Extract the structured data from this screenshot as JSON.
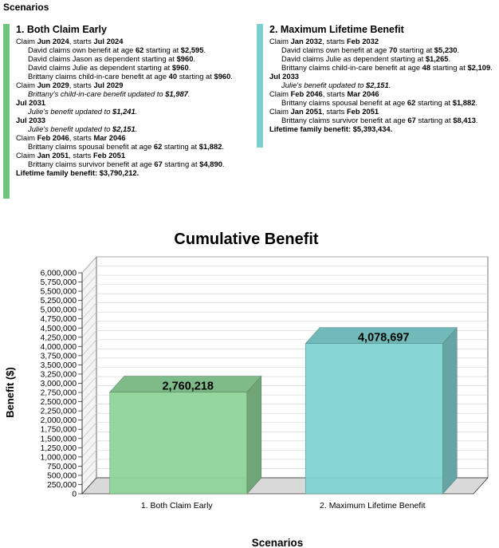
{
  "header": "Scenarios",
  "scenarios": [
    {
      "title": "1.  Both Claim Early",
      "color": "#6dc47a",
      "lines": [
        {
          "style": "plain",
          "parts": [
            [
              "Claim ",
              false
            ],
            [
              "Jun 2024",
              true
            ],
            [
              ", starts ",
              false
            ],
            [
              "Jul 2024",
              true
            ]
          ]
        },
        {
          "style": "ind",
          "parts": [
            [
              "David claims own benefit at age ",
              false
            ],
            [
              "62",
              true
            ],
            [
              " starting at ",
              false
            ],
            [
              "$2,595",
              true
            ],
            [
              ".",
              false
            ]
          ]
        },
        {
          "style": "ind",
          "parts": [
            [
              "David claims Jason as dependent starting at ",
              false
            ],
            [
              "$960",
              true
            ],
            [
              ".",
              false
            ]
          ]
        },
        {
          "style": "ind",
          "parts": [
            [
              "David claims Julie as dependent starting at ",
              false
            ],
            [
              "$960",
              true
            ],
            [
              ".",
              false
            ]
          ]
        },
        {
          "style": "ind",
          "parts": [
            [
              "Brittany claims child-in-care benefit at age ",
              false
            ],
            [
              "40",
              true
            ],
            [
              " starting at ",
              false
            ],
            [
              "$960",
              true
            ],
            [
              ".",
              false
            ]
          ]
        },
        {
          "style": "plain",
          "parts": [
            [
              "Claim ",
              false
            ],
            [
              "Jun 2029",
              true
            ],
            [
              ", starts ",
              false
            ],
            [
              "Jul 2029",
              true
            ]
          ]
        },
        {
          "style": "ind it",
          "parts": [
            [
              "Brittany's child-in-care benefit updated to ",
              false
            ],
            [
              "$1,987",
              true
            ],
            [
              ".",
              false
            ]
          ]
        },
        {
          "style": "b",
          "parts": [
            [
              "Jul 2031",
              true
            ]
          ]
        },
        {
          "style": "ind it",
          "parts": [
            [
              "Julie's benefit updated to ",
              false
            ],
            [
              "$1,241",
              true
            ],
            [
              ".",
              false
            ]
          ]
        },
        {
          "style": "b",
          "parts": [
            [
              "Jul 2033",
              true
            ]
          ]
        },
        {
          "style": "ind it",
          "parts": [
            [
              "Julie's benefit updated to ",
              false
            ],
            [
              "$2,151",
              true
            ],
            [
              ".",
              false
            ]
          ]
        },
        {
          "style": "plain",
          "parts": [
            [
              "Claim ",
              false
            ],
            [
              "Feb 2046",
              true
            ],
            [
              ", starts ",
              false
            ],
            [
              "Mar 2046",
              true
            ]
          ]
        },
        {
          "style": "ind",
          "parts": [
            [
              "Brittany claims spousal benefit at age ",
              false
            ],
            [
              "62",
              true
            ],
            [
              " starting at ",
              false
            ],
            [
              "$1,882",
              true
            ],
            [
              ".",
              false
            ]
          ]
        },
        {
          "style": "plain",
          "parts": [
            [
              "Claim ",
              false
            ],
            [
              "Jan 2051",
              true
            ],
            [
              ", starts ",
              false
            ],
            [
              "Feb 2051",
              true
            ]
          ]
        },
        {
          "style": "ind",
          "parts": [
            [
              "Brittany claims survivor benefit at age ",
              false
            ],
            [
              "67",
              true
            ],
            [
              " starting at ",
              false
            ],
            [
              "$4,890",
              true
            ],
            [
              ".",
              false
            ]
          ]
        },
        {
          "style": "b",
          "parts": [
            [
              "Lifetime family benefit: $3,790,212.",
              true
            ]
          ]
        }
      ]
    },
    {
      "title": "2.  Maximum Lifetime Benefit",
      "color": "#7ccfcf",
      "lines": [
        {
          "style": "plain",
          "parts": [
            [
              "Claim ",
              false
            ],
            [
              "Jan 2032",
              true
            ],
            [
              ", starts ",
              false
            ],
            [
              "Feb 2032",
              true
            ]
          ]
        },
        {
          "style": "ind",
          "parts": [
            [
              "David claims own benefit at age ",
              false
            ],
            [
              "70",
              true
            ],
            [
              " starting at ",
              false
            ],
            [
              "$5,230",
              true
            ],
            [
              ".",
              false
            ]
          ]
        },
        {
          "style": "ind",
          "parts": [
            [
              "David claims Julie as dependent starting at ",
              false
            ],
            [
              "$1,265",
              true
            ],
            [
              ".",
              false
            ]
          ]
        },
        {
          "style": "ind",
          "parts": [
            [
              "Brittany claims child-in-care benefit at age ",
              false
            ],
            [
              "48",
              true
            ],
            [
              " starting at ",
              false
            ],
            [
              "$2,109",
              true
            ],
            [
              ".",
              false
            ]
          ]
        },
        {
          "style": "b",
          "parts": [
            [
              "Jul 2033",
              true
            ]
          ]
        },
        {
          "style": "ind it",
          "parts": [
            [
              "Julie's benefit updated to ",
              false
            ],
            [
              "$2,151",
              true
            ],
            [
              ".",
              false
            ]
          ]
        },
        {
          "style": "plain",
          "parts": [
            [
              "Claim ",
              false
            ],
            [
              "Feb 2046",
              true
            ],
            [
              ", starts ",
              false
            ],
            [
              "Mar 2046",
              true
            ]
          ]
        },
        {
          "style": "ind",
          "parts": [
            [
              "Brittany claims spousal benefit at age ",
              false
            ],
            [
              "62",
              true
            ],
            [
              " starting at ",
              false
            ],
            [
              "$1,882",
              true
            ],
            [
              ".",
              false
            ]
          ]
        },
        {
          "style": "plain",
          "parts": [
            [
              "Claim ",
              false
            ],
            [
              "Jan 2051",
              true
            ],
            [
              ", starts ",
              false
            ],
            [
              "Feb 2051",
              true
            ]
          ]
        },
        {
          "style": "ind",
          "parts": [
            [
              "Brittany claims survivor benefit at age ",
              false
            ],
            [
              "67",
              true
            ],
            [
              " starting at ",
              false
            ],
            [
              "$8,413",
              true
            ],
            [
              ".",
              false
            ]
          ]
        },
        {
          "style": "b",
          "parts": [
            [
              "Lifetime family benefit: $5,393,434.",
              true
            ]
          ]
        }
      ]
    }
  ],
  "chart_data": {
    "type": "bar",
    "title": "Cumulative Benefit",
    "xlabel": "Scenarios",
    "ylabel": "Benefit ($)",
    "categories": [
      "1.  Both Claim Early",
      "2.  Maximum Lifetime Benefit"
    ],
    "values": [
      2760218,
      4078697
    ],
    "data_labels": [
      "2,760,218",
      "4,078,697"
    ],
    "colors": [
      "#8fd49a",
      "#82d3d3"
    ],
    "ylim": [
      0,
      6000000
    ],
    "ytick_step": 250000,
    "ytick_labels": [
      "0",
      "250,000",
      "500,000",
      "750,000",
      "1,000,000",
      "1,250,000",
      "1,500,000",
      "1,750,000",
      "2,000,000",
      "2,250,000",
      "2,500,000",
      "2,750,000",
      "3,000,000",
      "3,250,000",
      "3,500,000",
      "3,750,000",
      "4,000,000",
      "4,250,000",
      "4,500,000",
      "4,750,000",
      "5,000,000",
      "5,250,000",
      "5,500,000",
      "5,750,000",
      "6,000,000"
    ],
    "grid": true,
    "style": "3d"
  }
}
